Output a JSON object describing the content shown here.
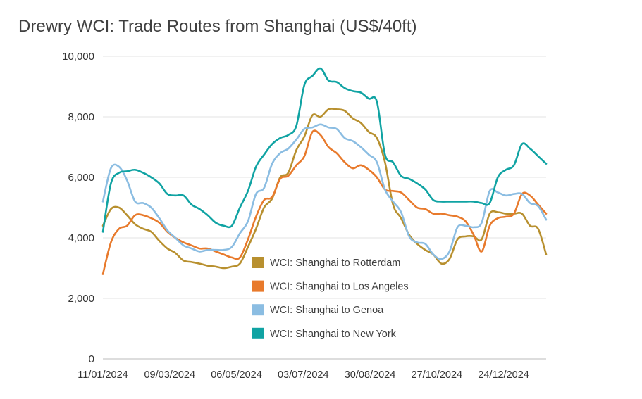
{
  "chart_data": {
    "type": "line",
    "title": "Drewry WCI: Trade Routes from Shanghai (US$/40ft)",
    "xlabel": "",
    "ylabel": "",
    "ylim": [
      0,
      10000
    ],
    "yticks": [
      "0",
      "2,000",
      "4,000",
      "6,000",
      "8,000",
      "10,000"
    ],
    "ytick_values": [
      0,
      2000,
      4000,
      6000,
      8000,
      10000
    ],
    "xlim": [
      "2024-01-11",
      "2025-01-30"
    ],
    "xticks": [
      "11/01/2024",
      "09/03/2024",
      "06/05/2024",
      "03/07/2024",
      "30/08/2024",
      "27/10/2024",
      "24/12/2024"
    ],
    "xtick_dates": [
      "2024-01-11",
      "2024-03-09",
      "2024-05-06",
      "2024-07-03",
      "2024-08-30",
      "2024-10-27",
      "2024-12-24"
    ],
    "grid": "horizontal",
    "legend_position": "center",
    "x": [
      "2024-01-11",
      "2024-01-18",
      "2024-01-25",
      "2024-02-01",
      "2024-02-08",
      "2024-02-15",
      "2024-02-22",
      "2024-02-29",
      "2024-03-07",
      "2024-03-14",
      "2024-03-21",
      "2024-03-28",
      "2024-04-04",
      "2024-04-11",
      "2024-04-18",
      "2024-04-25",
      "2024-05-02",
      "2024-05-09",
      "2024-05-16",
      "2024-05-23",
      "2024-05-30",
      "2024-06-06",
      "2024-06-13",
      "2024-06-20",
      "2024-06-27",
      "2024-07-04",
      "2024-07-11",
      "2024-07-18",
      "2024-07-25",
      "2024-08-01",
      "2024-08-08",
      "2024-08-15",
      "2024-08-22",
      "2024-08-29",
      "2024-09-05",
      "2024-09-12",
      "2024-09-19",
      "2024-09-26",
      "2024-10-03",
      "2024-10-10",
      "2024-10-17",
      "2024-10-24",
      "2024-10-31",
      "2024-11-07",
      "2024-11-14",
      "2024-11-21",
      "2024-11-28",
      "2024-12-05",
      "2024-12-12",
      "2024-12-19",
      "2024-12-26",
      "2025-01-02",
      "2025-01-09",
      "2025-01-16",
      "2025-01-23",
      "2025-01-30"
    ],
    "series": [
      {
        "name": "WCI: Shanghai to Rotterdam",
        "color": "#b8902f",
        "values": [
          4400,
          4950,
          5000,
          4750,
          4450,
          4300,
          4200,
          3900,
          3650,
          3500,
          3250,
          3200,
          3150,
          3080,
          3050,
          3000,
          3050,
          3150,
          3700,
          4300,
          5000,
          5300,
          6000,
          6150,
          6900,
          7350,
          8050,
          8000,
          8250,
          8250,
          8200,
          7950,
          7800,
          7500,
          7300,
          6500,
          5100,
          4650,
          4100,
          3800,
          3600,
          3450,
          3150,
          3300,
          3950,
          4050,
          4050,
          3950,
          4800,
          4850,
          4800,
          4800,
          4800,
          4400,
          4300,
          3450
        ]
      },
      {
        "name": "WCI: Shanghai to Los Angeles",
        "color": "#e87a2c",
        "values": [
          2800,
          3850,
          4300,
          4400,
          4750,
          4750,
          4650,
          4500,
          4200,
          4000,
          3850,
          3750,
          3650,
          3650,
          3550,
          3450,
          3350,
          3350,
          3950,
          4700,
          5250,
          5350,
          5950,
          6050,
          6400,
          6700,
          7500,
          7400,
          7000,
          6800,
          6500,
          6300,
          6400,
          6250,
          6000,
          5600,
          5550,
          5500,
          5250,
          5000,
          4950,
          4800,
          4800,
          4750,
          4700,
          4550,
          4100,
          3550,
          4400,
          4650,
          4700,
          4800,
          5450,
          5400,
          5100,
          4800
        ]
      },
      {
        "name": "WCI: Shanghai to Genoa",
        "color": "#8bbde2",
        "values": [
          5200,
          6300,
          6350,
          5900,
          5200,
          5150,
          5000,
          4650,
          4250,
          4000,
          3750,
          3650,
          3550,
          3600,
          3600,
          3600,
          3700,
          4150,
          4550,
          5450,
          5650,
          6450,
          6800,
          6950,
          7250,
          7600,
          7650,
          7750,
          7650,
          7600,
          7300,
          7200,
          7000,
          6750,
          6500,
          5600,
          5200,
          4850,
          4050,
          3850,
          3800,
          3450,
          3300,
          3550,
          4350,
          4400,
          4350,
          4500,
          5550,
          5500,
          5400,
          5450,
          5450,
          5150,
          5050,
          4600
        ]
      },
      {
        "name": "WCI: Shanghai to New York",
        "color": "#10a3a3",
        "values": [
          4200,
          5800,
          6150,
          6200,
          6250,
          6150,
          6000,
          5800,
          5450,
          5400,
          5400,
          5100,
          4950,
          4750,
          4500,
          4400,
          4400,
          5000,
          5550,
          6350,
          6750,
          7100,
          7300,
          7400,
          7700,
          9050,
          9350,
          9600,
          9200,
          9150,
          8950,
          8850,
          8800,
          8600,
          8500,
          6750,
          6500,
          6050,
          5950,
          5800,
          5600,
          5250,
          5200,
          5200,
          5200,
          5200,
          5200,
          5150,
          5150,
          6000,
          6250,
          6400,
          7100,
          6950,
          6700,
          6450
        ]
      }
    ]
  }
}
